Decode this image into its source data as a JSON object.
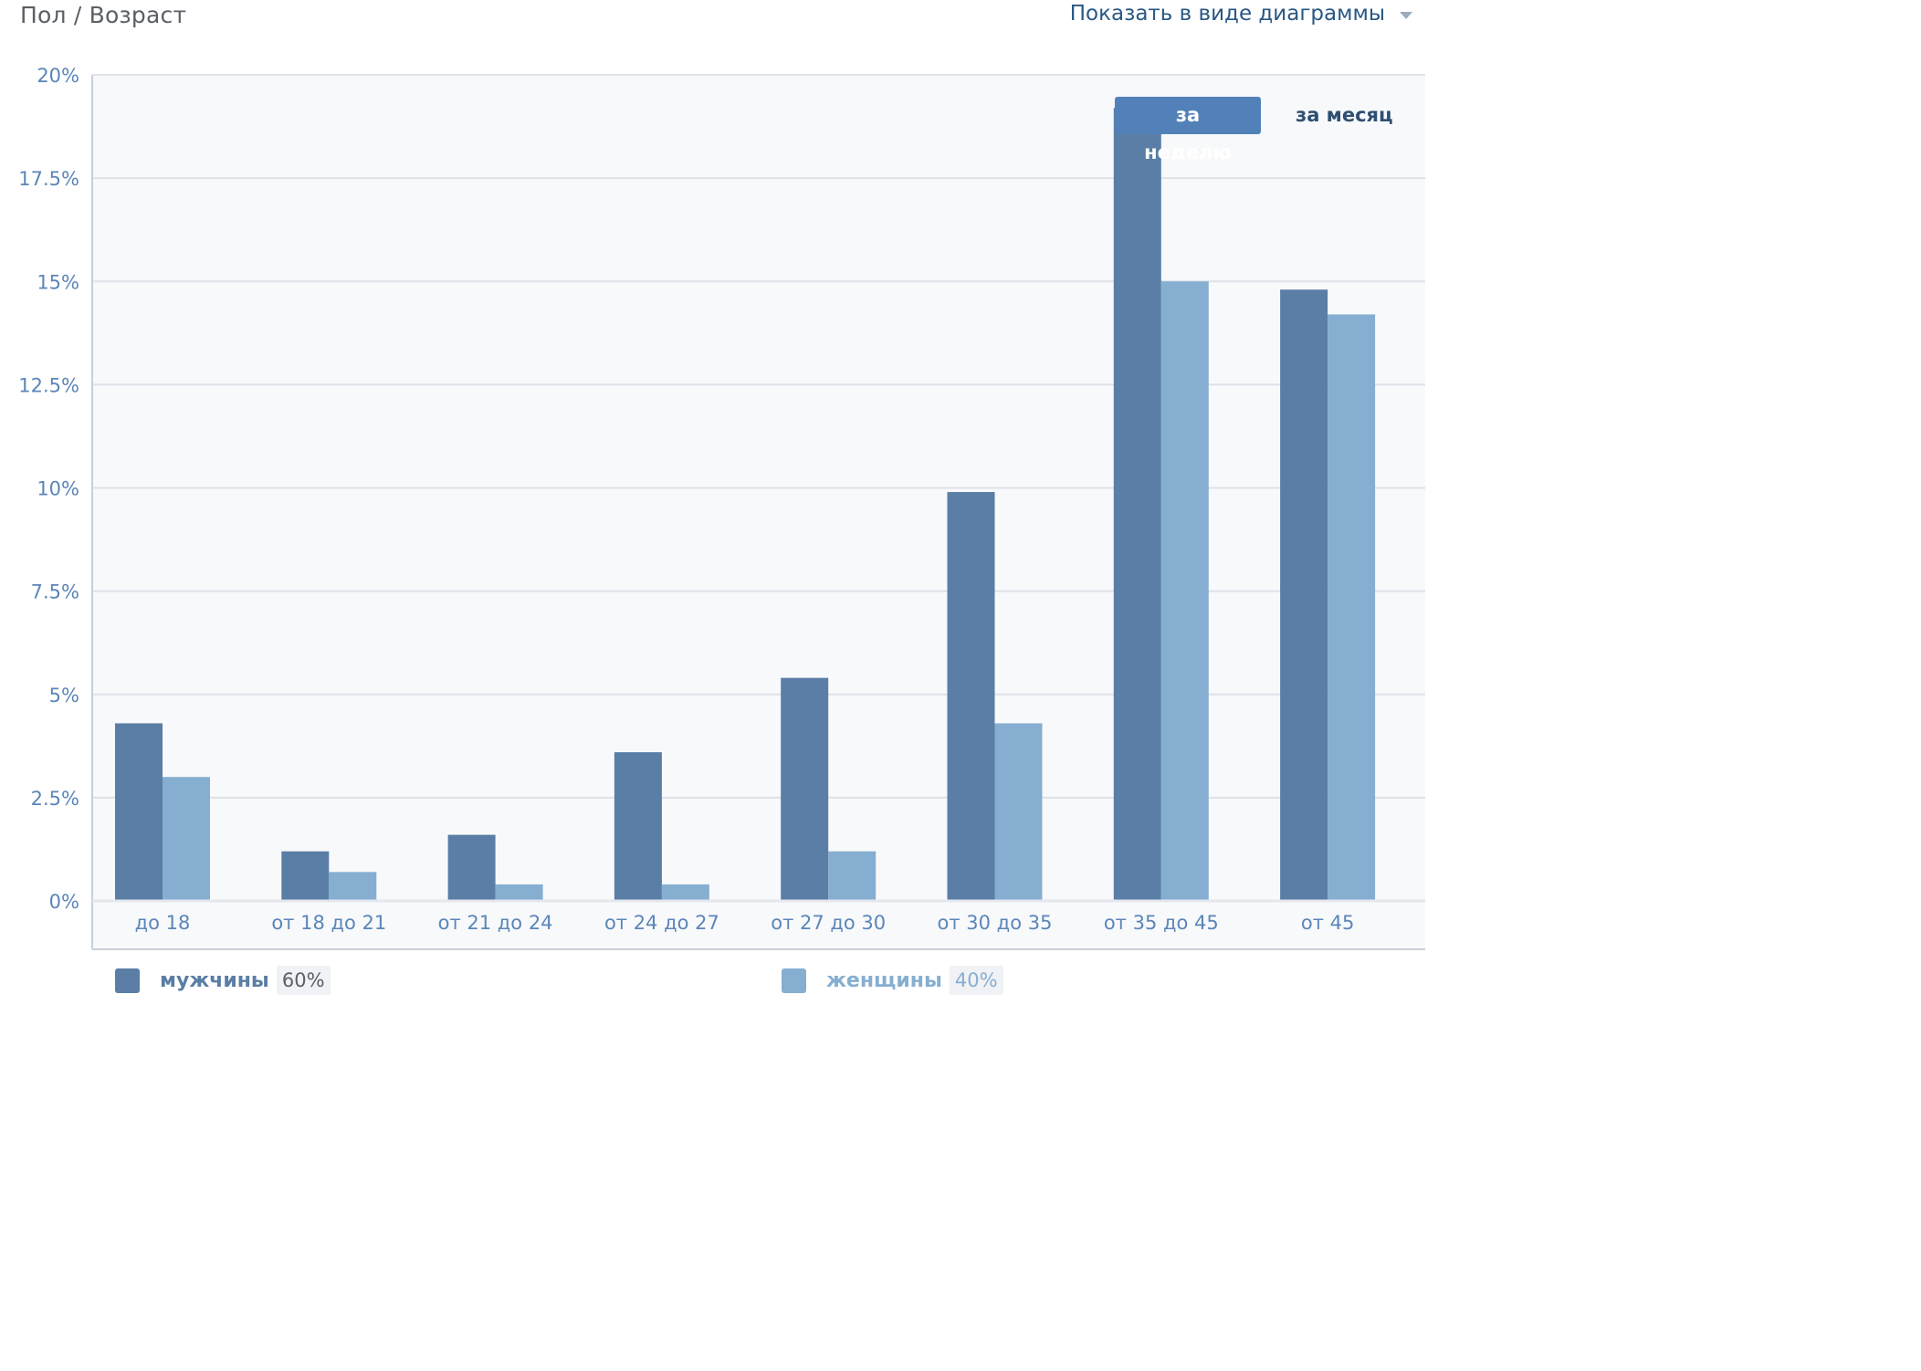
{
  "header": {
    "title": "Пол / Возраст",
    "view_toggle": "Показать в виде диаграммы"
  },
  "period": {
    "week": "за неделю",
    "month": "за месяц",
    "active": "week"
  },
  "colors": {
    "men": "#5a7ea5",
    "women": "#86aed1",
    "grid": "#dde2e8",
    "plot_bg": "#f8f9fb",
    "tick_text": "#5b86b8",
    "legend_pct_text": "#5b5f66"
  },
  "legend": [
    {
      "label": "мужчины",
      "percent": "60%"
    },
    {
      "label": "женщины",
      "percent": "40%"
    }
  ],
  "chart_data": {
    "type": "bar",
    "title": "",
    "xlabel": "",
    "ylabel": "",
    "ylim": [
      0,
      20
    ],
    "yticks": [
      0,
      2.5,
      5,
      7.5,
      10,
      12.5,
      15,
      17.5,
      20
    ],
    "ytick_labels": [
      "0%",
      "2.5%",
      "5%",
      "7.5%",
      "10%",
      "12.5%",
      "15%",
      "17.5%",
      "20%"
    ],
    "grid": true,
    "legend_position": "bottom",
    "categories": [
      "до 18",
      "от 18 до 21",
      "от 21 до 24",
      "от 24 до 27",
      "от 27 до 30",
      "от 30 до 35",
      "от 35 до 45",
      "от 45"
    ],
    "series": [
      {
        "name": "мужчины",
        "values": [
          4.3,
          1.2,
          1.6,
          3.6,
          5.4,
          9.9,
          19.2,
          14.8
        ]
      },
      {
        "name": "женщины",
        "values": [
          3.0,
          0.7,
          0.4,
          0.4,
          1.2,
          4.3,
          15.0,
          14.2
        ]
      }
    ]
  }
}
